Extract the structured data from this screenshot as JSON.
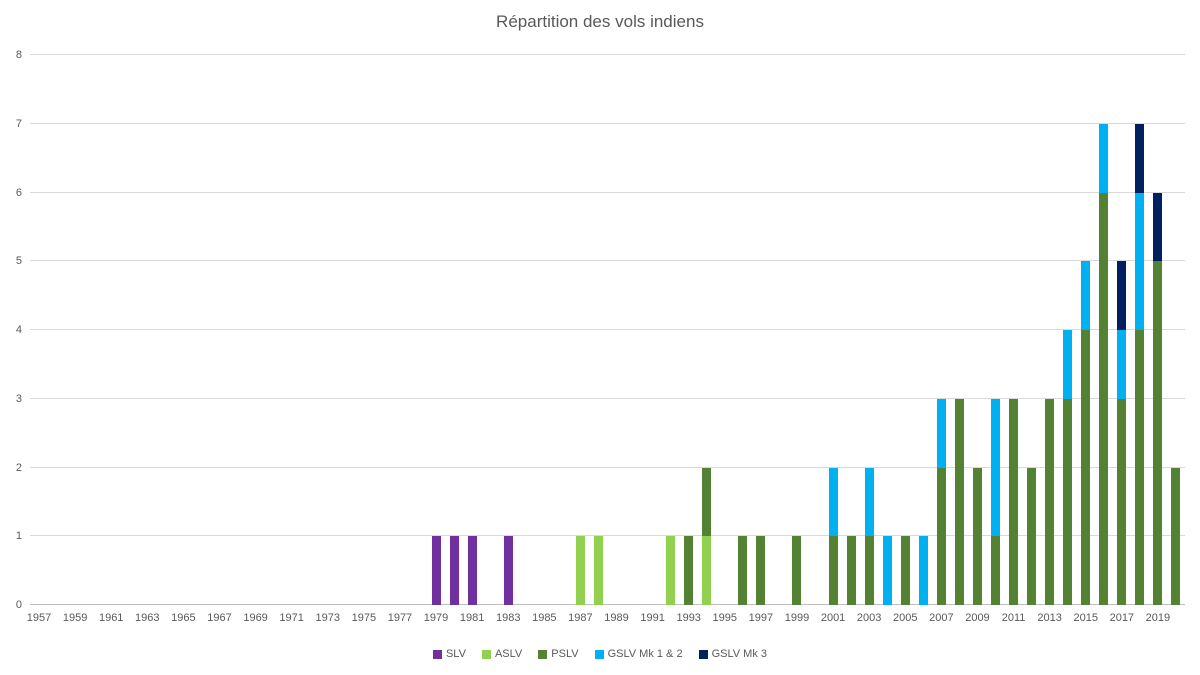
{
  "title": "Répartition des vols indiens",
  "colors": {
    "background": "#ffffff",
    "title_text": "#595959",
    "axis_text": "#595959",
    "gridline": "#d9d9d9",
    "axis_line": "#bfbfbf",
    "slv": "#7030a0",
    "aslv": "#92d050",
    "pslv": "#548235",
    "gslv_mk12": "#00b0f0",
    "gslv_mk3": "#002060"
  },
  "chart_data": {
    "type": "bar",
    "stacked": true,
    "title": "Répartition des vols indiens",
    "xlabel": "",
    "ylabel": "",
    "ylim": [
      0,
      8
    ],
    "y_ticks": [
      0,
      1,
      2,
      3,
      4,
      5,
      6,
      7,
      8
    ],
    "grid": true,
    "legend_position": "bottom",
    "x_tick_step": 2,
    "categories": [
      "1957",
      "1958",
      "1959",
      "1960",
      "1961",
      "1962",
      "1963",
      "1964",
      "1965",
      "1966",
      "1967",
      "1968",
      "1969",
      "1970",
      "1971",
      "1972",
      "1973",
      "1974",
      "1975",
      "1976",
      "1977",
      "1978",
      "1979",
      "1980",
      "1981",
      "1982",
      "1983",
      "1984",
      "1985",
      "1986",
      "1987",
      "1988",
      "1989",
      "1990",
      "1991",
      "1992",
      "1993",
      "1994",
      "1995",
      "1996",
      "1997",
      "1998",
      "1999",
      "2000",
      "2001",
      "2002",
      "2003",
      "2004",
      "2005",
      "2006",
      "2007",
      "2008",
      "2009",
      "2010",
      "2011",
      "2012",
      "2013",
      "2014",
      "2015",
      "2016",
      "2017",
      "2018",
      "2019",
      "2020"
    ],
    "series": [
      {
        "name": "SLV",
        "color": "#7030a0",
        "values": [
          0,
          0,
          0,
          0,
          0,
          0,
          0,
          0,
          0,
          0,
          0,
          0,
          0,
          0,
          0,
          0,
          0,
          0,
          0,
          0,
          0,
          0,
          1,
          1,
          1,
          0,
          1,
          0,
          0,
          0,
          0,
          0,
          0,
          0,
          0,
          0,
          0,
          0,
          0,
          0,
          0,
          0,
          0,
          0,
          0,
          0,
          0,
          0,
          0,
          0,
          0,
          0,
          0,
          0,
          0,
          0,
          0,
          0,
          0,
          0,
          0,
          0,
          0,
          0
        ]
      },
      {
        "name": "ASLV",
        "color": "#92d050",
        "values": [
          0,
          0,
          0,
          0,
          0,
          0,
          0,
          0,
          0,
          0,
          0,
          0,
          0,
          0,
          0,
          0,
          0,
          0,
          0,
          0,
          0,
          0,
          0,
          0,
          0,
          0,
          0,
          0,
          0,
          0,
          1,
          1,
          0,
          0,
          0,
          1,
          0,
          1,
          0,
          0,
          0,
          0,
          0,
          0,
          0,
          0,
          0,
          0,
          0,
          0,
          0,
          0,
          0,
          0,
          0,
          0,
          0,
          0,
          0,
          0,
          0,
          0,
          0,
          0
        ]
      },
      {
        "name": "PSLV",
        "color": "#548235",
        "values": [
          0,
          0,
          0,
          0,
          0,
          0,
          0,
          0,
          0,
          0,
          0,
          0,
          0,
          0,
          0,
          0,
          0,
          0,
          0,
          0,
          0,
          0,
          0,
          0,
          0,
          0,
          0,
          0,
          0,
          0,
          0,
          0,
          0,
          0,
          0,
          0,
          1,
          1,
          0,
          1,
          1,
          0,
          1,
          0,
          1,
          1,
          1,
          0,
          1,
          0,
          2,
          3,
          2,
          1,
          3,
          2,
          3,
          3,
          4,
          6,
          3,
          4,
          5,
          2
        ]
      },
      {
        "name": "GSLV Mk 1 & 2",
        "color": "#00b0f0",
        "values": [
          0,
          0,
          0,
          0,
          0,
          0,
          0,
          0,
          0,
          0,
          0,
          0,
          0,
          0,
          0,
          0,
          0,
          0,
          0,
          0,
          0,
          0,
          0,
          0,
          0,
          0,
          0,
          0,
          0,
          0,
          0,
          0,
          0,
          0,
          0,
          0,
          0,
          0,
          0,
          0,
          0,
          0,
          0,
          0,
          1,
          0,
          1,
          1,
          0,
          1,
          1,
          0,
          0,
          2,
          0,
          0,
          0,
          1,
          1,
          1,
          1,
          2,
          0,
          0
        ]
      },
      {
        "name": "GSLV Mk 3",
        "color": "#002060",
        "values": [
          0,
          0,
          0,
          0,
          0,
          0,
          0,
          0,
          0,
          0,
          0,
          0,
          0,
          0,
          0,
          0,
          0,
          0,
          0,
          0,
          0,
          0,
          0,
          0,
          0,
          0,
          0,
          0,
          0,
          0,
          0,
          0,
          0,
          0,
          0,
          0,
          0,
          0,
          0,
          0,
          0,
          0,
          0,
          0,
          0,
          0,
          0,
          0,
          0,
          0,
          0,
          0,
          0,
          0,
          0,
          0,
          0,
          0,
          0,
          0,
          1,
          1,
          1,
          0
        ]
      }
    ]
  }
}
